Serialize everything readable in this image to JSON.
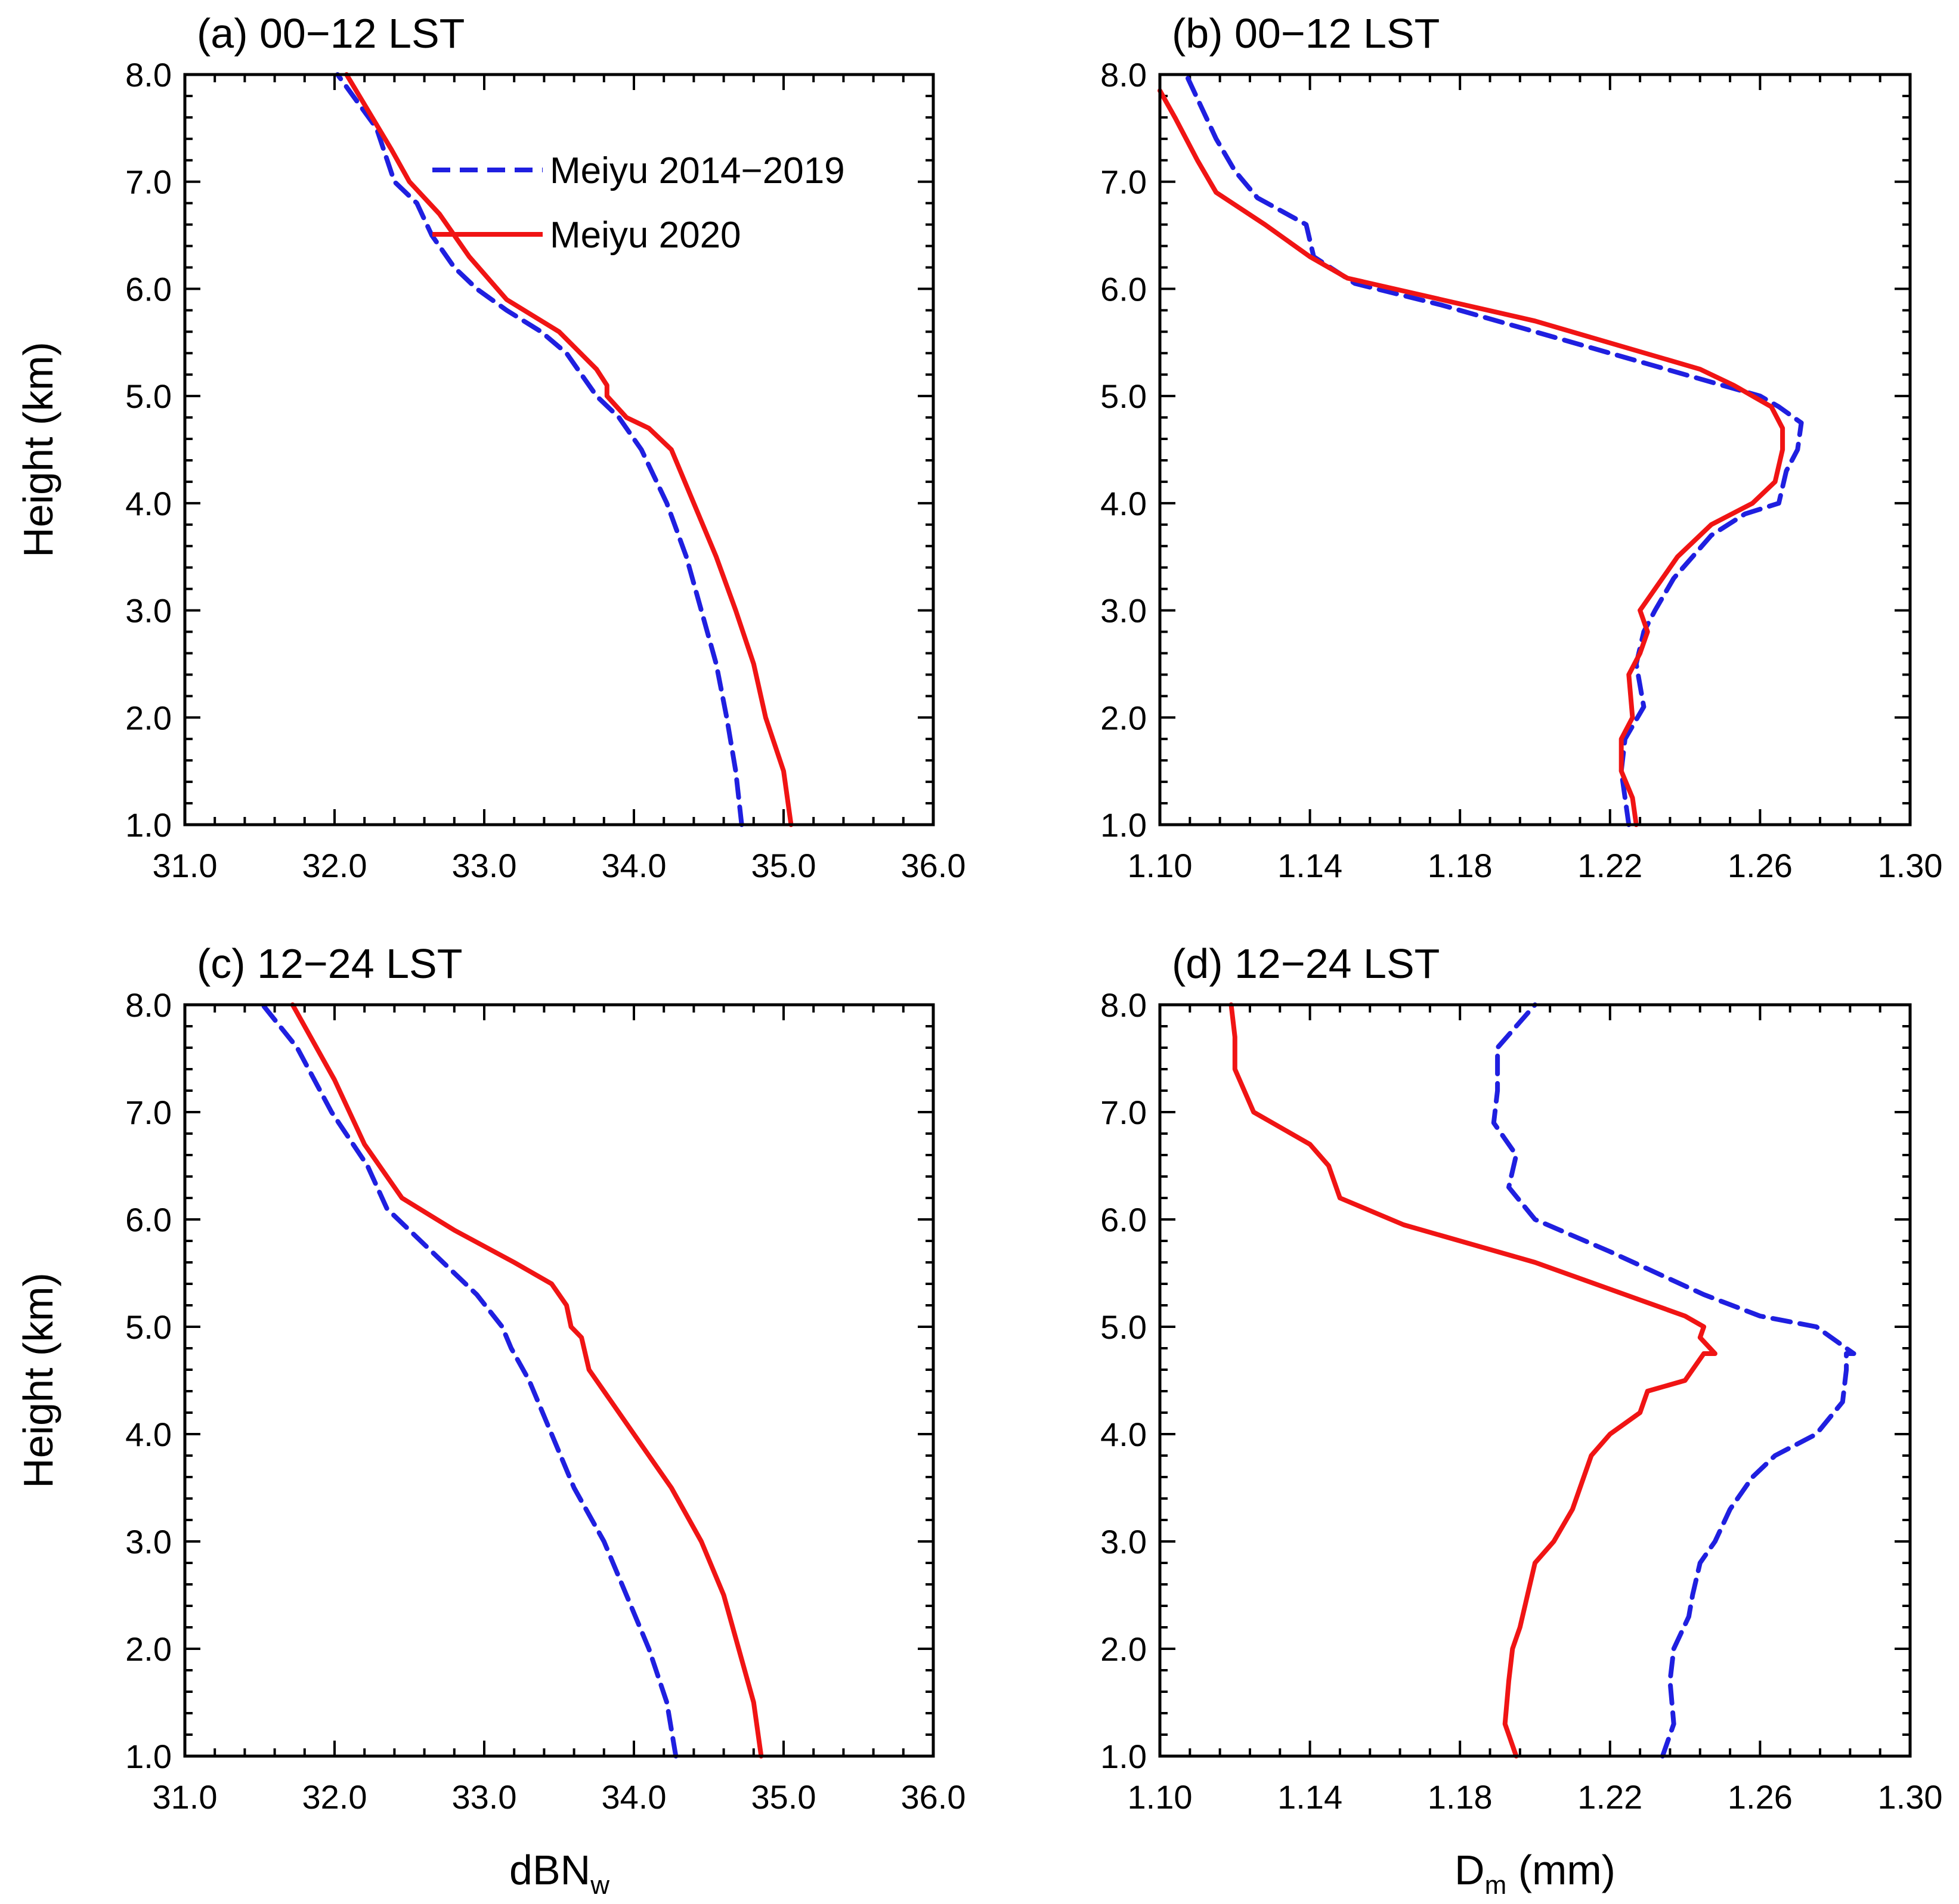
{
  "figure": {
    "ylabel": "Height (km)",
    "legend_placement": "top-right of panel (a)"
  },
  "series_styles": [
    {
      "name": "Meiyu 2014−2019",
      "color": "#1f1fe0",
      "dash": "dashed"
    },
    {
      "name": "Meiyu 2020",
      "color": "#f01414",
      "dash": "solid"
    }
  ],
  "chart_data": [
    {
      "id": "a",
      "type": "line",
      "title": "(a) 00−12 LST",
      "xlabel": "",
      "ylabel": "Height (km)",
      "xlim": [
        31,
        36
      ],
      "ylim": [
        1,
        8
      ],
      "xticks": [
        "31.0",
        "32.0",
        "33.0",
        "34.0",
        "35.0",
        "36.0"
      ],
      "yticks": [
        "1.0",
        "2.0",
        "3.0",
        "4.0",
        "5.0",
        "6.0",
        "7.0",
        "8.0"
      ],
      "series": [
        {
          "name": "Meiyu 2014−2019",
          "x": [
            34.72,
            34.68,
            34.62,
            34.55,
            34.45,
            34.35,
            34.22,
            34.05,
            33.9,
            33.75,
            33.65,
            33.55,
            33.38,
            33.15,
            32.95,
            32.8,
            32.65,
            32.55,
            32.4,
            32.28,
            32.02
          ],
          "y": [
            1.0,
            1.5,
            2.0,
            2.5,
            3.0,
            3.5,
            4.0,
            4.5,
            4.8,
            5.0,
            5.2,
            5.4,
            5.6,
            5.8,
            6.0,
            6.2,
            6.5,
            6.8,
            7.0,
            7.5,
            8.0
          ]
        },
        {
          "name": "Meiyu 2020",
          "x": [
            35.05,
            35.0,
            34.88,
            34.8,
            34.68,
            34.55,
            34.4,
            34.25,
            34.1,
            33.95,
            33.82,
            33.82,
            33.75,
            33.5,
            33.15,
            32.9,
            32.7,
            32.5,
            32.38,
            32.08
          ],
          "y": [
            1.0,
            1.5,
            2.0,
            2.5,
            3.0,
            3.5,
            4.0,
            4.5,
            4.7,
            4.8,
            5.0,
            5.1,
            5.25,
            5.6,
            5.9,
            6.3,
            6.7,
            7.0,
            7.3,
            8.0
          ]
        }
      ]
    },
    {
      "id": "b",
      "type": "line",
      "title": "(b) 00−12 LST",
      "xlabel": "",
      "ylabel": "Height (km)",
      "xlim": [
        1.1,
        1.3
      ],
      "ylim": [
        1,
        8
      ],
      "xticks": [
        "1.10",
        "1.14",
        "1.18",
        "1.22",
        "1.26",
        "1.30"
      ],
      "yticks": [
        "1.0",
        "2.0",
        "3.0",
        "4.0",
        "5.0",
        "6.0",
        "7.0",
        "8.0"
      ],
      "series": [
        {
          "name": "Meiyu 2014−2019",
          "x": [
            1.225,
            1.223,
            1.224,
            1.229,
            1.227,
            1.229,
            1.232,
            1.237,
            1.247,
            1.256,
            1.265,
            1.267,
            1.27,
            1.271,
            1.265,
            1.26,
            1.25,
            1.23,
            1.2,
            1.175,
            1.152,
            1.141,
            1.139,
            1.126,
            1.12,
            1.115,
            1.111,
            1.107
          ],
          "y": [
            1.0,
            1.5,
            1.8,
            2.1,
            2.5,
            2.8,
            3.0,
            3.3,
            3.7,
            3.9,
            4.0,
            4.3,
            4.5,
            4.75,
            4.9,
            5.0,
            5.1,
            5.3,
            5.6,
            5.85,
            6.05,
            6.3,
            6.6,
            6.85,
            7.1,
            7.4,
            7.7,
            8.0
          ]
        },
        {
          "name": "Meiyu 2020",
          "x": [
            1.227,
            1.226,
            1.223,
            1.223,
            1.226,
            1.225,
            1.228,
            1.23,
            1.228,
            1.232,
            1.238,
            1.247,
            1.258,
            1.264,
            1.266,
            1.266,
            1.263,
            1.258,
            1.253,
            1.244,
            1.2,
            1.15,
            1.14,
            1.128,
            1.115,
            1.11,
            1.104,
            1.1
          ],
          "y": [
            1.0,
            1.25,
            1.5,
            1.8,
            2.0,
            2.4,
            2.6,
            2.8,
            3.0,
            3.2,
            3.5,
            3.8,
            4.0,
            4.2,
            4.5,
            4.7,
            4.9,
            5.0,
            5.1,
            5.25,
            5.7,
            6.1,
            6.3,
            6.6,
            6.9,
            7.2,
            7.6,
            7.85
          ]
        }
      ]
    },
    {
      "id": "c",
      "type": "line",
      "title": "(c) 12−24 LST",
      "xlabel": "dBN_w",
      "xlabel_main": "dBN",
      "xlabel_sub": "w",
      "ylabel": "Height (km)",
      "xlim": [
        31,
        36
      ],
      "ylim": [
        1,
        8
      ],
      "xticks": [
        "31.0",
        "32.0",
        "33.0",
        "34.0",
        "35.0",
        "36.0"
      ],
      "yticks": [
        "1.0",
        "2.0",
        "3.0",
        "4.0",
        "5.0",
        "6.0",
        "7.0",
        "8.0"
      ],
      "series": [
        {
          "name": "Meiyu 2014−2019",
          "x": [
            34.28,
            34.22,
            34.1,
            33.95,
            33.8,
            33.6,
            33.45,
            33.3,
            33.18,
            33.12,
            32.95,
            32.65,
            32.35,
            32.22,
            31.98,
            31.75,
            31.52
          ],
          "y": [
            1.0,
            1.5,
            2.0,
            2.5,
            3.0,
            3.5,
            4.0,
            4.5,
            4.8,
            5.0,
            5.3,
            5.7,
            6.1,
            6.5,
            7.0,
            7.6,
            8.0
          ]
        },
        {
          "name": "Meiyu 2020",
          "x": [
            34.85,
            34.8,
            34.7,
            34.6,
            34.45,
            34.25,
            34.0,
            33.85,
            33.7,
            33.65,
            33.58,
            33.55,
            33.45,
            33.2,
            32.8,
            32.45,
            32.2,
            32.0,
            31.72
          ],
          "y": [
            1.0,
            1.5,
            2.0,
            2.5,
            3.0,
            3.5,
            4.0,
            4.3,
            4.6,
            4.9,
            5.0,
            5.2,
            5.4,
            5.6,
            5.9,
            6.2,
            6.7,
            7.3,
            8.0
          ]
        }
      ]
    },
    {
      "id": "d",
      "type": "line",
      "title": "(d) 12−24 LST",
      "xlabel": "D_m (mm)",
      "xlabel_main": "D",
      "xlabel_sub": "m",
      "xlabel_tail": " (mm)",
      "ylabel": "Height (km)",
      "xlim": [
        1.1,
        1.3
      ],
      "ylim": [
        1,
        8
      ],
      "xticks": [
        "1.10",
        "1.14",
        "1.18",
        "1.22",
        "1.26",
        "1.30"
      ],
      "yticks": [
        "1.0",
        "2.0",
        "3.0",
        "4.0",
        "5.0",
        "6.0",
        "7.0",
        "8.0"
      ],
      "series": [
        {
          "name": "Meiyu 2014−2019",
          "x": [
            1.234,
            1.237,
            1.236,
            1.237,
            1.241,
            1.242,
            1.244,
            1.248,
            1.252,
            1.258,
            1.264,
            1.275,
            1.282,
            1.283,
            1.283,
            1.285,
            1.275,
            1.26,
            1.245,
            1.22,
            1.2,
            1.193,
            1.195,
            1.189,
            1.19,
            1.19,
            1.2
          ],
          "y": [
            1.0,
            1.3,
            1.7,
            2.0,
            2.3,
            2.5,
            2.8,
            3.0,
            3.3,
            3.6,
            3.8,
            4.0,
            4.3,
            4.6,
            4.75,
            4.75,
            5.0,
            5.1,
            5.3,
            5.7,
            6.0,
            6.3,
            6.6,
            6.9,
            7.2,
            7.6,
            8.0
          ]
        },
        {
          "name": "Meiyu 2020",
          "x": [
            1.195,
            1.192,
            1.193,
            1.194,
            1.196,
            1.198,
            1.2,
            1.205,
            1.21,
            1.213,
            1.215,
            1.22,
            1.228,
            1.23,
            1.24,
            1.245,
            1.248,
            1.244,
            1.245,
            1.24,
            1.228,
            1.2,
            1.165,
            1.148,
            1.145,
            1.14,
            1.125,
            1.12,
            1.12,
            1.119
          ],
          "y": [
            1.0,
            1.3,
            1.7,
            2.0,
            2.2,
            2.5,
            2.8,
            3.0,
            3.3,
            3.6,
            3.8,
            4.0,
            4.2,
            4.4,
            4.5,
            4.75,
            4.75,
            4.9,
            5.0,
            5.1,
            5.25,
            5.6,
            5.95,
            6.2,
            6.5,
            6.7,
            7.0,
            7.4,
            7.7,
            8.0
          ]
        }
      ]
    }
  ]
}
